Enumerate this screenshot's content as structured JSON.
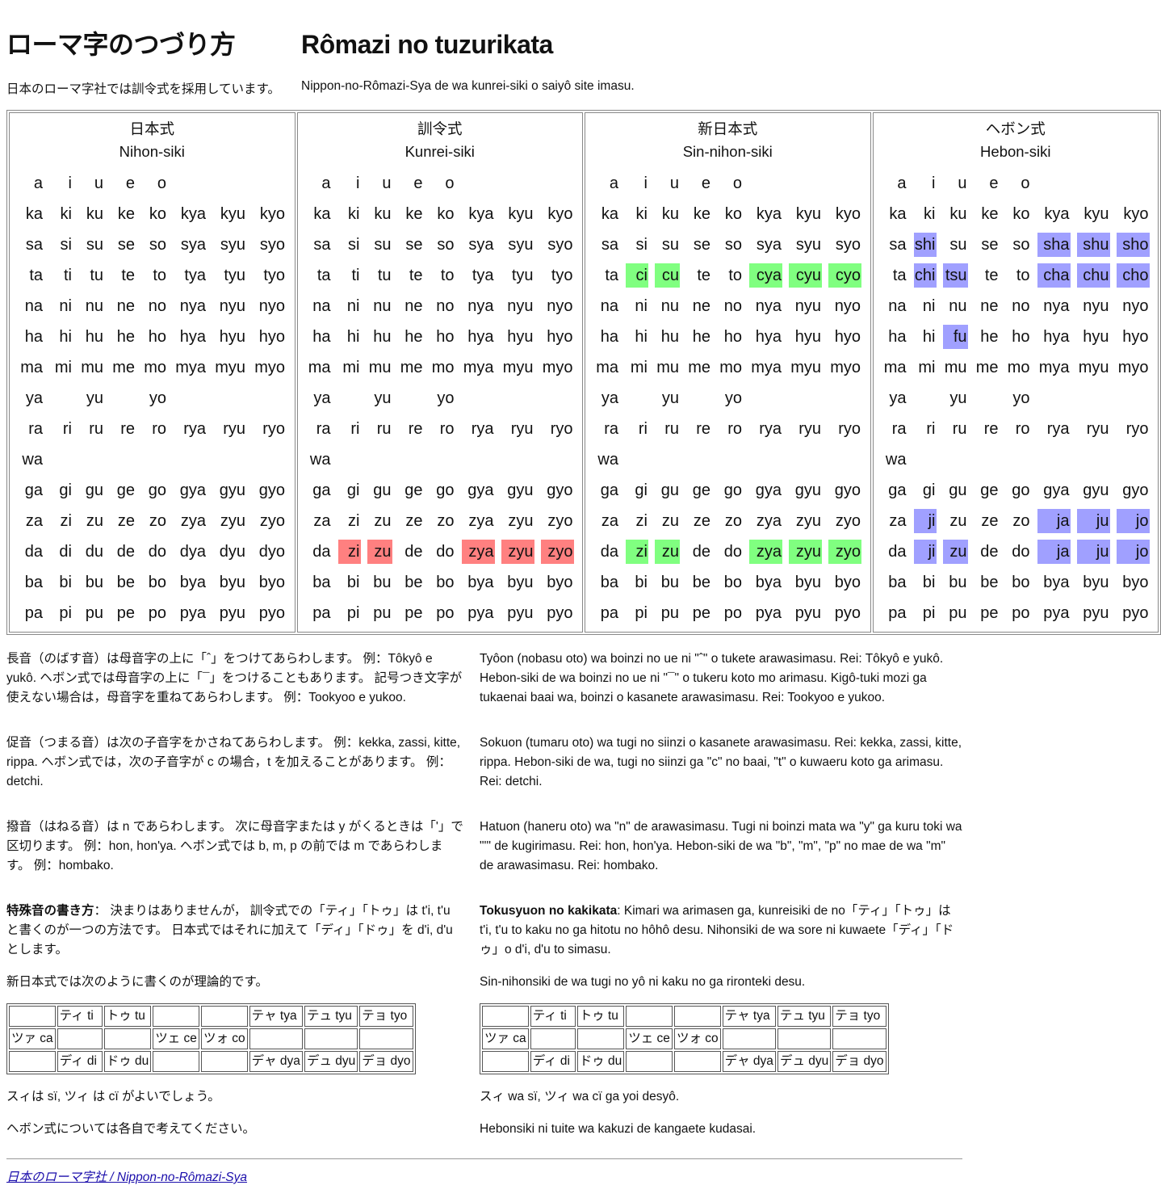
{
  "title": {
    "ja": "ローマ字のつづり方",
    "romaji": "Rômazi no tuzurikata"
  },
  "subtitle": {
    "ja": "日本のローマ字社では訓令式を採用しています。",
    "romaji": "Nippon-no-Rômazi-Sya de wa kunrei-siki o saiyô site imasu."
  },
  "highlight_colors": {
    "red": "#ff8080",
    "green": "#80ff80",
    "blue": "#a0a0ff"
  },
  "systems": [
    {
      "name_ja": "日本式",
      "name_romaji": "Nihon-siki",
      "rows": [
        [
          "a",
          "i",
          "u",
          "e",
          "o"
        ],
        [
          "ka",
          "ki",
          "ku",
          "ke",
          "ko",
          "kya",
          "kyu",
          "kyo"
        ],
        [
          "sa",
          "si",
          "su",
          "se",
          "so",
          "sya",
          "syu",
          "syo"
        ],
        [
          "ta",
          "ti",
          "tu",
          "te",
          "to",
          "tya",
          "tyu",
          "tyo"
        ],
        [
          "na",
          "ni",
          "nu",
          "ne",
          "no",
          "nya",
          "nyu",
          "nyo"
        ],
        [
          "ha",
          "hi",
          "hu",
          "he",
          "ho",
          "hya",
          "hyu",
          "hyo"
        ],
        [
          "ma",
          "mi",
          "mu",
          "me",
          "mo",
          "mya",
          "myu",
          "myo"
        ],
        [
          "ya",
          "",
          "yu",
          "",
          "yo"
        ],
        [
          "ra",
          "ri",
          "ru",
          "re",
          "ro",
          "rya",
          "ryu",
          "ryo"
        ],
        [
          "wa"
        ],
        [
          "ga",
          "gi",
          "gu",
          "ge",
          "go",
          "gya",
          "gyu",
          "gyo"
        ],
        [
          "za",
          "zi",
          "zu",
          "ze",
          "zo",
          "zya",
          "zyu",
          "zyo"
        ],
        [
          "da",
          "di",
          "du",
          "de",
          "do",
          "dya",
          "dyu",
          "dyo"
        ],
        [
          "ba",
          "bi",
          "bu",
          "be",
          "bo",
          "bya",
          "byu",
          "byo"
        ],
        [
          "pa",
          "pi",
          "pu",
          "pe",
          "po",
          "pya",
          "pyu",
          "pyo"
        ]
      ]
    },
    {
      "name_ja": "訓令式",
      "name_romaji": "Kunrei-siki",
      "rows": [
        [
          "a",
          "i",
          "u",
          "e",
          "o"
        ],
        [
          "ka",
          "ki",
          "ku",
          "ke",
          "ko",
          "kya",
          "kyu",
          "kyo"
        ],
        [
          "sa",
          "si",
          "su",
          "se",
          "so",
          "sya",
          "syu",
          "syo"
        ],
        [
          "ta",
          "ti",
          "tu",
          "te",
          "to",
          "tya",
          "tyu",
          "tyo"
        ],
        [
          "na",
          "ni",
          "nu",
          "ne",
          "no",
          "nya",
          "nyu",
          "nyo"
        ],
        [
          "ha",
          "hi",
          "hu",
          "he",
          "ho",
          "hya",
          "hyu",
          "hyo"
        ],
        [
          "ma",
          "mi",
          "mu",
          "me",
          "mo",
          "mya",
          "myu",
          "myo"
        ],
        [
          "ya",
          "",
          "yu",
          "",
          "yo"
        ],
        [
          "ra",
          "ri",
          "ru",
          "re",
          "ro",
          "rya",
          "ryu",
          "ryo"
        ],
        [
          "wa"
        ],
        [
          "ga",
          "gi",
          "gu",
          "ge",
          "go",
          "gya",
          "gyu",
          "gyo"
        ],
        [
          "za",
          "zi",
          "zu",
          "ze",
          "zo",
          "zya",
          "zyu",
          "zyo"
        ],
        [
          "da",
          {
            "t": "zi",
            "hl": "red"
          },
          {
            "t": "zu",
            "hl": "red"
          },
          "de",
          "do",
          {
            "t": "zya",
            "hl": "red"
          },
          {
            "t": "zyu",
            "hl": "red"
          },
          {
            "t": "zyo",
            "hl": "red"
          }
        ],
        [
          "ba",
          "bi",
          "bu",
          "be",
          "bo",
          "bya",
          "byu",
          "byo"
        ],
        [
          "pa",
          "pi",
          "pu",
          "pe",
          "po",
          "pya",
          "pyu",
          "pyo"
        ]
      ]
    },
    {
      "name_ja": "新日本式",
      "name_romaji": "Sin-nihon-siki",
      "rows": [
        [
          "a",
          "i",
          "u",
          "e",
          "o"
        ],
        [
          "ka",
          "ki",
          "ku",
          "ke",
          "ko",
          "kya",
          "kyu",
          "kyo"
        ],
        [
          "sa",
          "si",
          "su",
          "se",
          "so",
          "sya",
          "syu",
          "syo"
        ],
        [
          "ta",
          {
            "t": "ci",
            "hl": "green"
          },
          {
            "t": "cu",
            "hl": "green"
          },
          "te",
          "to",
          {
            "t": "cya",
            "hl": "green"
          },
          {
            "t": "cyu",
            "hl": "green"
          },
          {
            "t": "cyo",
            "hl": "green"
          }
        ],
        [
          "na",
          "ni",
          "nu",
          "ne",
          "no",
          "nya",
          "nyu",
          "nyo"
        ],
        [
          "ha",
          "hi",
          "hu",
          "he",
          "ho",
          "hya",
          "hyu",
          "hyo"
        ],
        [
          "ma",
          "mi",
          "mu",
          "me",
          "mo",
          "mya",
          "myu",
          "myo"
        ],
        [
          "ya",
          "",
          "yu",
          "",
          "yo"
        ],
        [
          "ra",
          "ri",
          "ru",
          "re",
          "ro",
          "rya",
          "ryu",
          "ryo"
        ],
        [
          "wa"
        ],
        [
          "ga",
          "gi",
          "gu",
          "ge",
          "go",
          "gya",
          "gyu",
          "gyo"
        ],
        [
          "za",
          "zi",
          "zu",
          "ze",
          "zo",
          "zya",
          "zyu",
          "zyo"
        ],
        [
          "da",
          {
            "t": "zi",
            "hl": "green"
          },
          {
            "t": "zu",
            "hl": "green"
          },
          "de",
          "do",
          {
            "t": "zya",
            "hl": "green"
          },
          {
            "t": "zyu",
            "hl": "green"
          },
          {
            "t": "zyo",
            "hl": "green"
          }
        ],
        [
          "ba",
          "bi",
          "bu",
          "be",
          "bo",
          "bya",
          "byu",
          "byo"
        ],
        [
          "pa",
          "pi",
          "pu",
          "pe",
          "po",
          "pya",
          "pyu",
          "pyo"
        ]
      ]
    },
    {
      "name_ja": "ヘボン式",
      "name_romaji": "Hebon-siki",
      "rows": [
        [
          "a",
          "i",
          "u",
          "e",
          "o"
        ],
        [
          "ka",
          "ki",
          "ku",
          "ke",
          "ko",
          "kya",
          "kyu",
          "kyo"
        ],
        [
          "sa",
          {
            "t": "shi",
            "hl": "blue"
          },
          "su",
          "se",
          "so",
          {
            "t": "sha",
            "hl": "blue"
          },
          {
            "t": "shu",
            "hl": "blue"
          },
          {
            "t": "sho",
            "hl": "blue"
          }
        ],
        [
          "ta",
          {
            "t": "chi",
            "hl": "blue"
          },
          {
            "t": "tsu",
            "hl": "blue"
          },
          "te",
          "to",
          {
            "t": "cha",
            "hl": "blue"
          },
          {
            "t": "chu",
            "hl": "blue"
          },
          {
            "t": "cho",
            "hl": "blue"
          }
        ],
        [
          "na",
          "ni",
          "nu",
          "ne",
          "no",
          "nya",
          "nyu",
          "nyo"
        ],
        [
          "ha",
          "hi",
          {
            "t": "fu",
            "hl": "blue"
          },
          "he",
          "ho",
          "hya",
          "hyu",
          "hyo"
        ],
        [
          "ma",
          "mi",
          "mu",
          "me",
          "mo",
          "mya",
          "myu",
          "myo"
        ],
        [
          "ya",
          "",
          "yu",
          "",
          "yo"
        ],
        [
          "ra",
          "ri",
          "ru",
          "re",
          "ro",
          "rya",
          "ryu",
          "ryo"
        ],
        [
          "wa"
        ],
        [
          "ga",
          "gi",
          "gu",
          "ge",
          "go",
          "gya",
          "gyu",
          "gyo"
        ],
        [
          "za",
          {
            "t": "ji",
            "hl": "blue"
          },
          "zu",
          "ze",
          "zo",
          {
            "t": "ja",
            "hl": "blue"
          },
          {
            "t": "ju",
            "hl": "blue"
          },
          {
            "t": "jo",
            "hl": "blue"
          }
        ],
        [
          "da",
          {
            "t": "ji",
            "hl": "blue"
          },
          {
            "t": "zu",
            "hl": "blue"
          },
          "de",
          "do",
          {
            "t": "ja",
            "hl": "blue"
          },
          {
            "t": "ju",
            "hl": "blue"
          },
          {
            "t": "jo",
            "hl": "blue"
          }
        ],
        [
          "ba",
          "bi",
          "bu",
          "be",
          "bo",
          "bya",
          "byu",
          "byo"
        ],
        [
          "pa",
          "pi",
          "pu",
          "pe",
          "po",
          "pya",
          "pyu",
          "pyo"
        ]
      ]
    }
  ],
  "notes": {
    "long_vowel": {
      "ja": "長音（のばす音）は母音字の上に「ˆ」をつけてあらわします。 例：Tôkyô e yukô. ヘボン式では母音字の上に「¯」をつけることもあります。 記号つき文字が使えない場合は，母音字を重ねてあらわします。 例：Tookyoo e yukoo.",
      "romaji": "Tyôon (nobasu oto) wa boinzi no ue ni \"ˆ\" o tukete arawasimasu. Rei: Tôkyô e yukô. Hebon-siki de wa boinzi no ue ni \"¯\" o tukeru koto mo arimasu. Kigô-tuki mozi ga tukaenai baai wa, boinzi o kasanete arawasimasu. Rei: Tookyoo e yukoo."
    },
    "double_consonant": {
      "ja": "促音（つまる音）は次の子音字をかさねてあらわします。 例：kekka, zassi, kitte, rippa. ヘボン式では，次の子音字が c の場合，t を加えることがあります。 例：detchi.",
      "romaji": "Sokuon (tumaru oto) wa tugi no siinzi o kasanete arawasimasu. Rei: kekka, zassi, kitte, rippa. Hebon-siki de wa, tugi no siinzi ga \"c\" no baai, \"t\" o kuwaeru koto ga arimasu. Rei: detchi."
    },
    "syllabic_n": {
      "ja": "撥音（はねる音）は n であらわします。 次に母音字または y がくるときは「'」で区切ります。 例：hon, hon'ya. ヘボン式では b, m, p の前では m であらわします。 例：hombako.",
      "romaji": "Hatuon (haneru oto) wa \"n\" de arawasimasu. Tugi ni boinzi mata wa \"y\" ga kuru toki wa \"'\" de kugirimasu. Rei: hon, hon'ya. Hebon-siki de wa \"b\", \"m\", \"p\" no mae de wa \"m\" de arawasimasu. Rei: hombako."
    },
    "special": {
      "ja_lead": "特殊音の書き方",
      "ja": "： 決まりはありませんが， 訓令式での「ティ」「トゥ」は t'i, t'u と書くのが一つの方法です。 日本式ではそれに加えて「ディ」「ドゥ」を d'i, d'u とします。",
      "romaji_lead": "Tokusyuon no kakikata",
      "romaji": ": Kimari wa arimasen ga, kunreisiki de no「ティ」「トゥ」は t'i, t'u to kaku no ga hitotu no hôhô desu. Nihonsiki de wa sore ni kuwaete「ディ」「ドゥ」o d'i, d'u to simasu."
    },
    "sin_nihon": {
      "ja": "新日本式では次のように書くのが理論的です。",
      "romaji": "Sin-nihonsiki de wa tugi no yô ni kaku no ga rironteki desu."
    },
    "special_table": [
      [
        "",
        "ティ ti",
        "トゥ tu",
        "",
        "",
        "テャ tya",
        "テュ tyu",
        "テョ tyo"
      ],
      [
        "ツァ ca",
        "",
        "",
        "ツェ ce",
        "ツォ co",
        "",
        "",
        ""
      ],
      [
        "",
        "ディ di",
        "ドゥ du",
        "",
        "",
        "デャ dya",
        "デュ dyu",
        "デョ dyo"
      ]
    ],
    "si_ci": {
      "ja": "スィは sï, ツィ は cï がよいでしょう。",
      "romaji": "スィ wa sï, ツィ wa cï ga yoi desyô."
    },
    "hebon": {
      "ja": "ヘボン式については各自で考えてください。",
      "romaji": "Hebonsiki ni tuite wa kakuzi de kangaete kudasai."
    }
  },
  "footer": {
    "link": "日本のローマ字社 / Nippon-no-Rômazi-Sya"
  }
}
